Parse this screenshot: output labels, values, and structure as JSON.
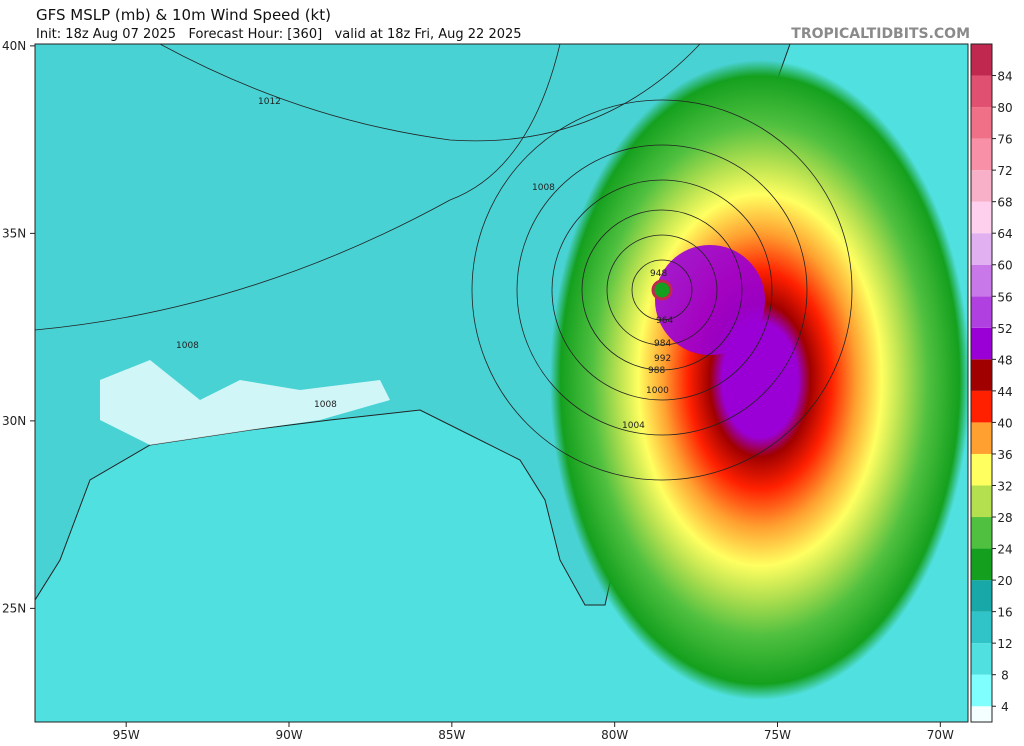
{
  "header": {
    "title": "GFS MSLP (mb) & 10m Wind Speed (kt)",
    "subtitle": "Init: 18z Aug 07 2025   Forecast Hour: [360]   valid at 18z Fri, Aug 22 2025",
    "watermark": "TROPICALTIDBITS.COM"
  },
  "map": {
    "xlim": [
      -97.8,
      -69.15
    ],
    "ylim": [
      21.97,
      40.05
    ],
    "xticks": [
      {
        "value": -95,
        "label": "95W"
      },
      {
        "value": -90,
        "label": "90W"
      },
      {
        "value": -85,
        "label": "85W"
      },
      {
        "value": -80,
        "label": "80W"
      },
      {
        "value": -75,
        "label": "75W"
      },
      {
        "value": -70,
        "label": "70W"
      }
    ],
    "yticks": [
      {
        "value": 40,
        "label": "40N"
      },
      {
        "value": 35,
        "label": "35N"
      },
      {
        "value": 30,
        "label": "30N"
      },
      {
        "value": 25,
        "label": "25N"
      }
    ]
  },
  "colorbar": {
    "range": [
      2,
      88
    ],
    "ticks": [
      4,
      8,
      12,
      16,
      20,
      24,
      28,
      32,
      36,
      40,
      44,
      48,
      52,
      56,
      60,
      64,
      68,
      72,
      76,
      80,
      84
    ],
    "colors": [
      "#f4ffff",
      "#80ffff",
      "#50e0e0",
      "#30c4c8",
      "#18a8a8",
      "#14a01e",
      "#50c040",
      "#b4e050",
      "#ffff60",
      "#ffa030",
      "#ff2000",
      "#a00000",
      "#9a00d6",
      "#b040e0",
      "#c878e8",
      "#e0b0f0",
      "#ffd0ee",
      "#f8b0c8",
      "#f890a8",
      "#f07088",
      "#e05070",
      "#c02850"
    ]
  },
  "isobar_labels": [
    "1012",
    "1008",
    "1008",
    "1008",
    "1004",
    "1000",
    "988",
    "992",
    "984",
    "964",
    "948"
  ]
}
